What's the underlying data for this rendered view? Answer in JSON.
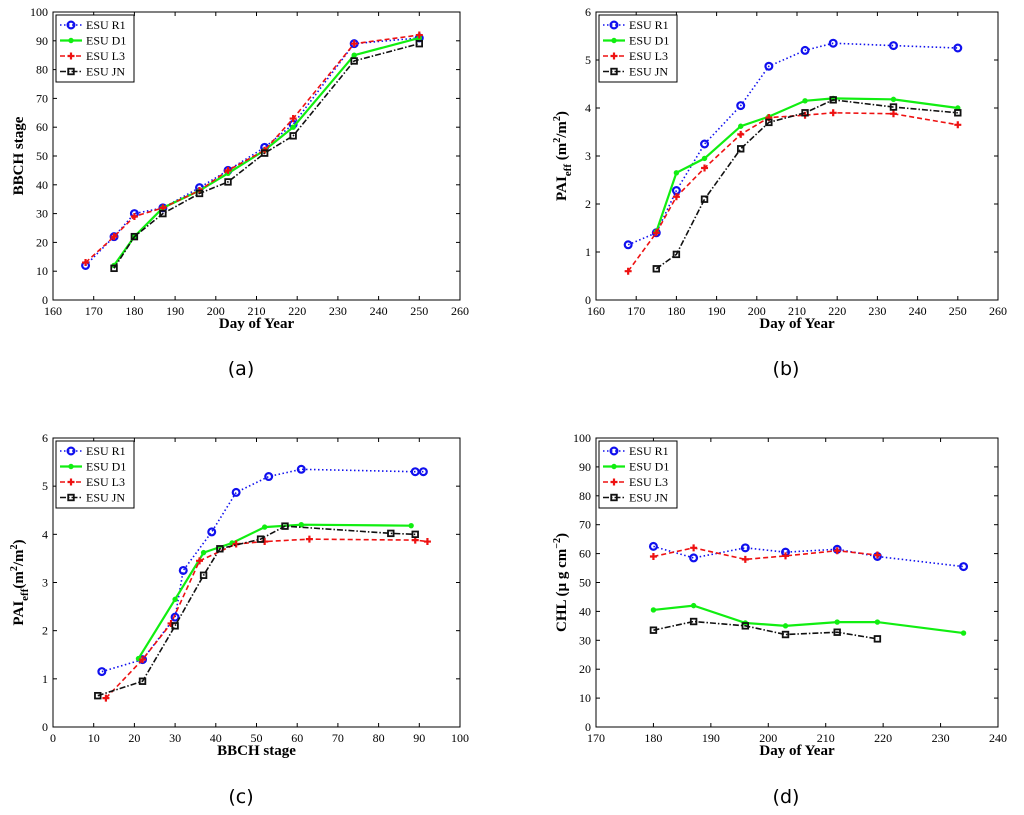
{
  "colors": {
    "R1": "#1010ee",
    "D1": "#11ee11",
    "L3": "#ee1111",
    "JN": "#111111"
  },
  "chart_data": [
    {
      "id": "a",
      "type": "line",
      "caption": "(a)",
      "xlabel": "Day of Year",
      "ylabel": "BBCH stage",
      "xlim": [
        160,
        260
      ],
      "ylim": [
        0,
        100
      ],
      "xticks": [
        "160",
        "170",
        "180",
        "190",
        "200",
        "210",
        "220",
        "230",
        "240",
        "250",
        "260"
      ],
      "yticks": [
        "0",
        "10",
        "20",
        "30",
        "40",
        "50",
        "60",
        "70",
        "80",
        "90",
        "100"
      ],
      "legend": "top-left",
      "series": [
        {
          "name": "ESU R1",
          "key": "R1",
          "x": [
            168,
            175,
            180,
            187,
            196,
            203,
            212,
            219,
            234,
            250
          ],
          "y": [
            12,
            22,
            30,
            32,
            39,
            45,
            53,
            61,
            89,
            91
          ]
        },
        {
          "name": "ESU D1",
          "key": "D1",
          "x": [
            175,
            180,
            187,
            196,
            203,
            212,
            219,
            234,
            250
          ],
          "y": [
            12,
            22,
            32,
            38,
            44,
            52,
            60,
            85,
            91
          ]
        },
        {
          "name": "ESU L3",
          "key": "L3",
          "x": [
            168,
            175,
            180,
            187,
            196,
            203,
            212,
            219,
            234,
            250
          ],
          "y": [
            13,
            22,
            29,
            32,
            38,
            45,
            52,
            63,
            89,
            92
          ]
        },
        {
          "name": "ESU JN",
          "key": "JN",
          "x": [
            175,
            180,
            187,
            196,
            203,
            212,
            219,
            234,
            250
          ],
          "y": [
            11,
            22,
            30,
            37,
            41,
            51,
            57,
            83,
            89
          ]
        }
      ]
    },
    {
      "id": "b",
      "type": "line",
      "caption": "(b)",
      "xlabel": "Day of Year",
      "ylabel": "PAIeff (m2/m2)",
      "ylabel_parts": {
        "main": "PAI",
        "sub": "eff",
        "unit_open": " (m",
        "sup1": "2",
        "unit_mid": "/m",
        "sup2": "2",
        "unit_close": ")"
      },
      "xlim": [
        160,
        260
      ],
      "ylim": [
        0,
        6
      ],
      "xticks": [
        "160",
        "170",
        "180",
        "190",
        "200",
        "210",
        "220",
        "230",
        "240",
        "250",
        "260"
      ],
      "yticks": [
        "0",
        "1",
        "2",
        "3",
        "4",
        "5",
        "6"
      ],
      "legend": "top-left",
      "series": [
        {
          "name": "ESU R1",
          "key": "R1",
          "x": [
            168,
            175,
            180,
            187,
            196,
            203,
            212,
            219,
            234,
            250
          ],
          "y": [
            1.15,
            1.4,
            2.28,
            3.25,
            4.05,
            4.87,
            5.2,
            5.35,
            5.3,
            5.25
          ]
        },
        {
          "name": "ESU D1",
          "key": "D1",
          "x": [
            175,
            180,
            187,
            196,
            203,
            212,
            219,
            234,
            250
          ],
          "y": [
            1.42,
            2.65,
            2.95,
            3.62,
            3.82,
            4.15,
            4.2,
            4.18,
            4.0
          ]
        },
        {
          "name": "ESU L3",
          "key": "L3",
          "x": [
            168,
            175,
            180,
            187,
            196,
            203,
            212,
            219,
            234,
            250
          ],
          "y": [
            0.6,
            1.4,
            2.15,
            2.75,
            3.45,
            3.8,
            3.85,
            3.9,
            3.88,
            3.65
          ]
        },
        {
          "name": "ESU JN",
          "key": "JN",
          "x": [
            175,
            180,
            187,
            196,
            203,
            212,
            219,
            234,
            250
          ],
          "y": [
            0.65,
            0.95,
            2.1,
            3.15,
            3.7,
            3.9,
            4.17,
            4.02,
            3.9
          ]
        }
      ]
    },
    {
      "id": "c",
      "type": "line",
      "caption": "(c)",
      "xlabel": "BBCH stage",
      "ylabel": "PAIeff (m2/m2)",
      "ylabel_parts": {
        "main": "PAI",
        "sub": "eff",
        "unit_open": "(m",
        "sup1": "2",
        "unit_mid": "/m",
        "sup2": "2",
        "unit_close": ")"
      },
      "xlim": [
        0,
        100
      ],
      "ylim": [
        0,
        6
      ],
      "xticks": [
        "0",
        "10",
        "20",
        "30",
        "40",
        "50",
        "60",
        "70",
        "80",
        "90",
        "100"
      ],
      "yticks": [
        "0",
        "1",
        "2",
        "3",
        "4",
        "5",
        "6"
      ],
      "legend": "top-left",
      "series": [
        {
          "name": "ESU R1",
          "key": "R1",
          "x": [
            12,
            22,
            30,
            32,
            39,
            45,
            53,
            61,
            89,
            91
          ],
          "y": [
            1.15,
            1.4,
            2.28,
            3.25,
            4.05,
            4.87,
            5.2,
            5.35,
            5.3,
            5.3
          ]
        },
        {
          "name": "ESU D1",
          "key": "D1",
          "x": [
            21,
            30,
            37,
            44,
            52,
            61,
            88
          ],
          "y": [
            1.42,
            2.65,
            3.62,
            3.82,
            4.15,
            4.2,
            4.18
          ]
        },
        {
          "name": "ESU L3",
          "key": "L3",
          "x": [
            13,
            22,
            29,
            36,
            45,
            52,
            63,
            89,
            92
          ],
          "y": [
            0.6,
            1.4,
            2.15,
            3.45,
            3.8,
            3.85,
            3.9,
            3.88,
            3.85
          ]
        },
        {
          "name": "ESU JN",
          "key": "JN",
          "x": [
            11,
            22,
            30,
            37,
            41,
            51,
            57,
            83,
            89
          ],
          "y": [
            0.65,
            0.95,
            2.1,
            3.15,
            3.7,
            3.9,
            4.17,
            4.02,
            4.0
          ]
        }
      ]
    },
    {
      "id": "d",
      "type": "line",
      "caption": "(d)",
      "xlabel": "Day of Year",
      "ylabel": "CHL (µ g cm−2)",
      "ylabel_parts": {
        "main": "CHL (",
        "mu": "µ",
        "rest": " g cm",
        "sup": "−2",
        "close": ")"
      },
      "xlim": [
        170,
        240
      ],
      "ylim": [
        0,
        100
      ],
      "xticks": [
        "170",
        "180",
        "190",
        "200",
        "210",
        "220",
        "230",
        "240"
      ],
      "yticks": [
        "0",
        "10",
        "20",
        "30",
        "40",
        "50",
        "60",
        "70",
        "80",
        "90",
        "100"
      ],
      "legend": "top-left",
      "series": [
        {
          "name": "ESU R1",
          "key": "R1",
          "x": [
            180,
            187,
            196,
            203,
            212,
            219,
            234
          ],
          "y": [
            62.5,
            58.5,
            62,
            60.5,
            61.5,
            59,
            55.5
          ]
        },
        {
          "name": "ESU D1",
          "key": "D1",
          "x": [
            180,
            187,
            196,
            203,
            212,
            219,
            234
          ],
          "y": [
            40.5,
            42,
            36,
            35,
            36.3,
            36.3,
            32.5
          ]
        },
        {
          "name": "ESU L3",
          "key": "L3",
          "x": [
            180,
            187,
            196,
            203,
            212,
            219
          ],
          "y": [
            59,
            62,
            58,
            59.2,
            61,
            59.5
          ]
        },
        {
          "name": "ESU JN",
          "key": "JN",
          "x": [
            180,
            187,
            196,
            203,
            212,
            219
          ],
          "y": [
            33.5,
            36.5,
            35,
            32,
            32.8,
            30.5
          ]
        }
      ]
    }
  ]
}
